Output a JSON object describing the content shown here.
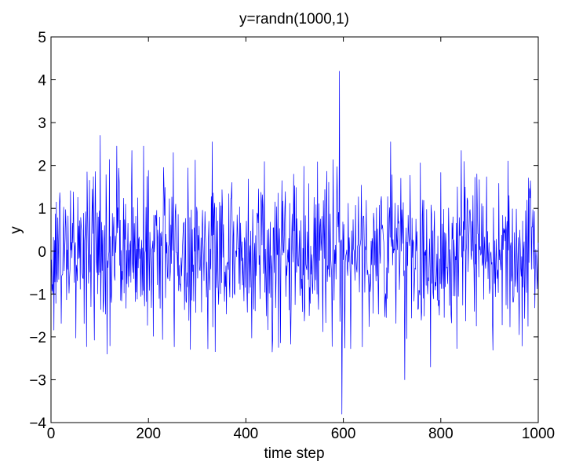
{
  "chart_data": {
    "type": "line",
    "title": "y=randn(1000,1)",
    "xlabel": "time step",
    "ylabel": "y",
    "xlim": [
      0,
      1000
    ],
    "ylim": [
      -4,
      5
    ],
    "x_ticks": [
      0,
      200,
      400,
      600,
      800,
      1000
    ],
    "x_tick_labels": [
      "0",
      "200",
      "400",
      "600",
      "800",
      "1000"
    ],
    "y_ticks": [
      -4,
      -3,
      -2,
      -1,
      0,
      1,
      2,
      3,
      4,
      5
    ],
    "y_tick_labels": [
      "−4",
      "−3",
      "−2",
      "−1",
      "0",
      "1",
      "2",
      "3",
      "4",
      "5"
    ],
    "grid": false,
    "series": [
      {
        "color": "#0000ff",
        "x": [
          1,
          101,
          115,
          135,
          166,
          190,
          251,
          331,
          454,
          592,
          597,
          697,
          726,
          779,
          842,
          1000
        ],
        "y": [
          -0.2,
          2.7,
          -2.4,
          2.45,
          2.35,
          2.45,
          2.3,
          2.55,
          -2.35,
          4.2,
          -3.8,
          2.55,
          -3.0,
          -2.7,
          2.35,
          0.2
        ],
        "points": 1000,
        "note_values": "sampled standard-normal noise, 1000 points; listed x/y are the visible extreme values read from the plot"
      }
    ]
  }
}
